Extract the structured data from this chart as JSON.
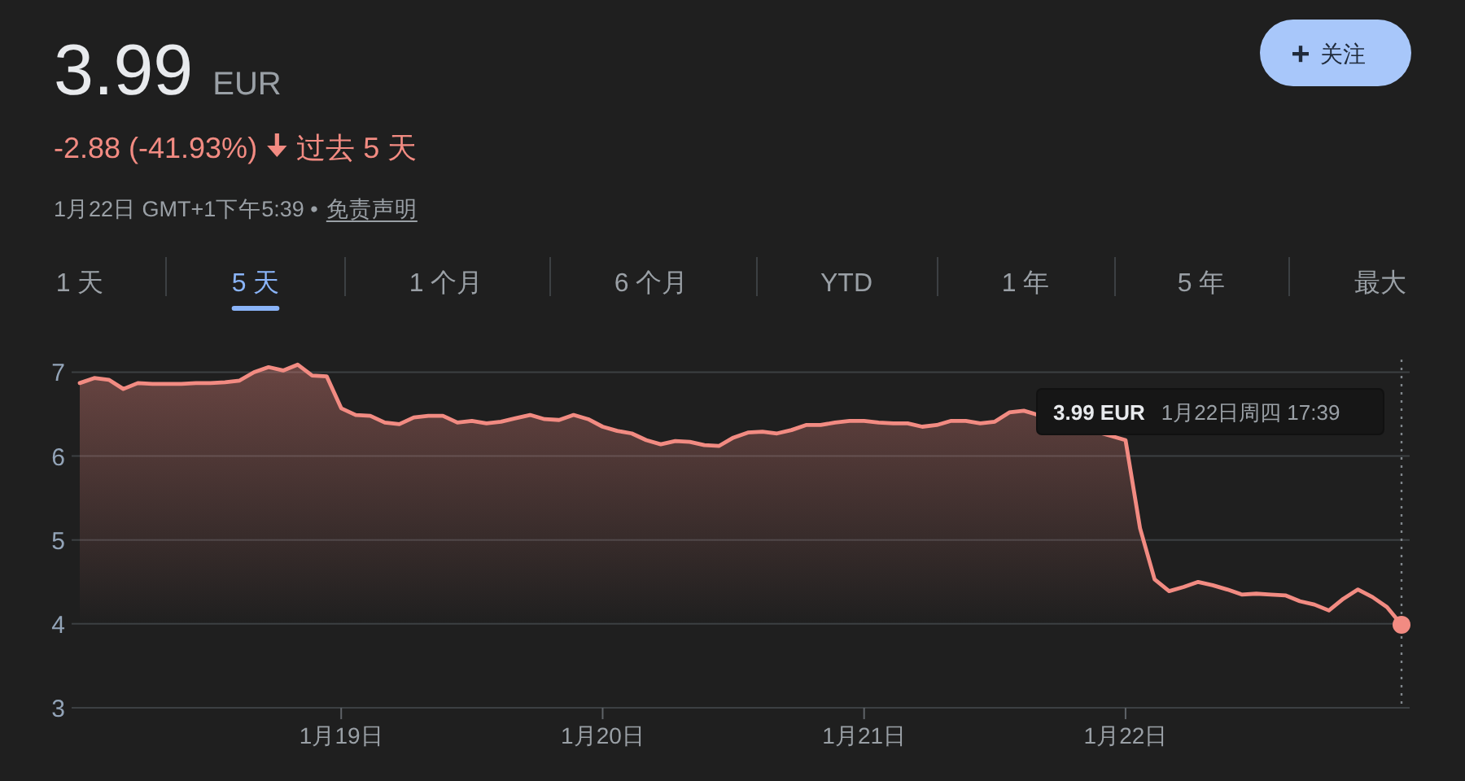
{
  "chart_data": {
    "type": "area",
    "title": "3.99",
    "annotations": [
      "EUR",
      "-2.88 (-41.93%)",
      "过去 5 天",
      "1月22日 GMT+1下午5:39 •",
      "免责声明",
      "1 天",
      "5 天",
      "1 个月",
      "6 个月",
      "YTD",
      "1 年",
      "5 年",
      "最大",
      "关注",
      "3.99 EUR",
      "1月22日周四 17:39"
    ],
    "categories": [
      null,
      null,
      null,
      null,
      null,
      null,
      null,
      null,
      null,
      null,
      null,
      null,
      null,
      null,
      null,
      null,
      null,
      null,
      "1月19日",
      null,
      null,
      null,
      null,
      null,
      null,
      null,
      null,
      null,
      null,
      null,
      null,
      null,
      null,
      null,
      null,
      null,
      "1月20日",
      null,
      null,
      null,
      null,
      null,
      null,
      null,
      null,
      null,
      null,
      null,
      null,
      null,
      null,
      null,
      null,
      null,
      "1月21日",
      null,
      null,
      null,
      null,
      null,
      null,
      null,
      null,
      null,
      null,
      null,
      null,
      null,
      null,
      null,
      null,
      null,
      "1月22日",
      null,
      null,
      null,
      null,
      null,
      null,
      null,
      null,
      null,
      null,
      null,
      null,
      null,
      null,
      null,
      null,
      null,
      null,
      null
    ],
    "series": [
      {
        "color": "#f28b82",
        "values": [
          6.87,
          6.93,
          6.91,
          6.8,
          6.87,
          6.86,
          6.86,
          6.86,
          6.87,
          6.87,
          6.88,
          6.9,
          7.0,
          7.06,
          7.02,
          7.09,
          6.96,
          6.95,
          6.57,
          6.49,
          6.48,
          6.4,
          6.38,
          6.46,
          6.48,
          6.48,
          6.4,
          6.42,
          6.39,
          6.41,
          6.45,
          6.49,
          6.44,
          6.43,
          6.49,
          6.44,
          6.35,
          6.3,
          6.27,
          6.19,
          6.14,
          6.18,
          6.17,
          6.13,
          6.12,
          6.22,
          6.28,
          6.29,
          6.27,
          6.31,
          6.37,
          6.37,
          6.4,
          6.42,
          6.42,
          6.4,
          6.39,
          6.39,
          6.35,
          6.37,
          6.42,
          6.42,
          6.39,
          6.41,
          6.52,
          6.54,
          null,
          null,
          null,
          null,
          null,
          null,
          6.19,
          5.14,
          4.53,
          4.39,
          4.44,
          4.5,
          4.46,
          4.41,
          4.35,
          4.36,
          4.35,
          4.34,
          4.27,
          4.23,
          4.16,
          4.3,
          4.41,
          4.32,
          4.2,
          3.99
        ]
      },
      {
        "type": "scatter",
        "color": "#f28b82",
        "values": [
          null,
          null,
          null,
          null,
          null,
          null,
          null,
          null,
          null,
          null,
          null,
          null,
          null,
          null,
          null,
          null,
          null,
          null,
          null,
          null,
          null,
          null,
          null,
          null,
          null,
          null,
          null,
          null,
          null,
          null,
          null,
          null,
          null,
          null,
          null,
          null,
          null,
          null,
          null,
          null,
          null,
          null,
          null,
          null,
          null,
          null,
          null,
          null,
          null,
          null,
          null,
          null,
          null,
          null,
          null,
          null,
          null,
          null,
          null,
          null,
          null,
          null,
          null,
          null,
          null,
          null,
          null,
          null,
          null,
          null,
          null,
          null,
          null,
          null,
          null,
          null,
          null,
          null,
          null,
          null,
          null,
          null,
          null,
          null,
          null,
          null,
          null,
          null,
          null,
          null,
          null,
          3.99
        ]
      }
    ],
    "ylim": [
      3,
      7.15
    ],
    "yticks": [
      3,
      4,
      5,
      6,
      7
    ],
    "grid": "y"
  }
}
